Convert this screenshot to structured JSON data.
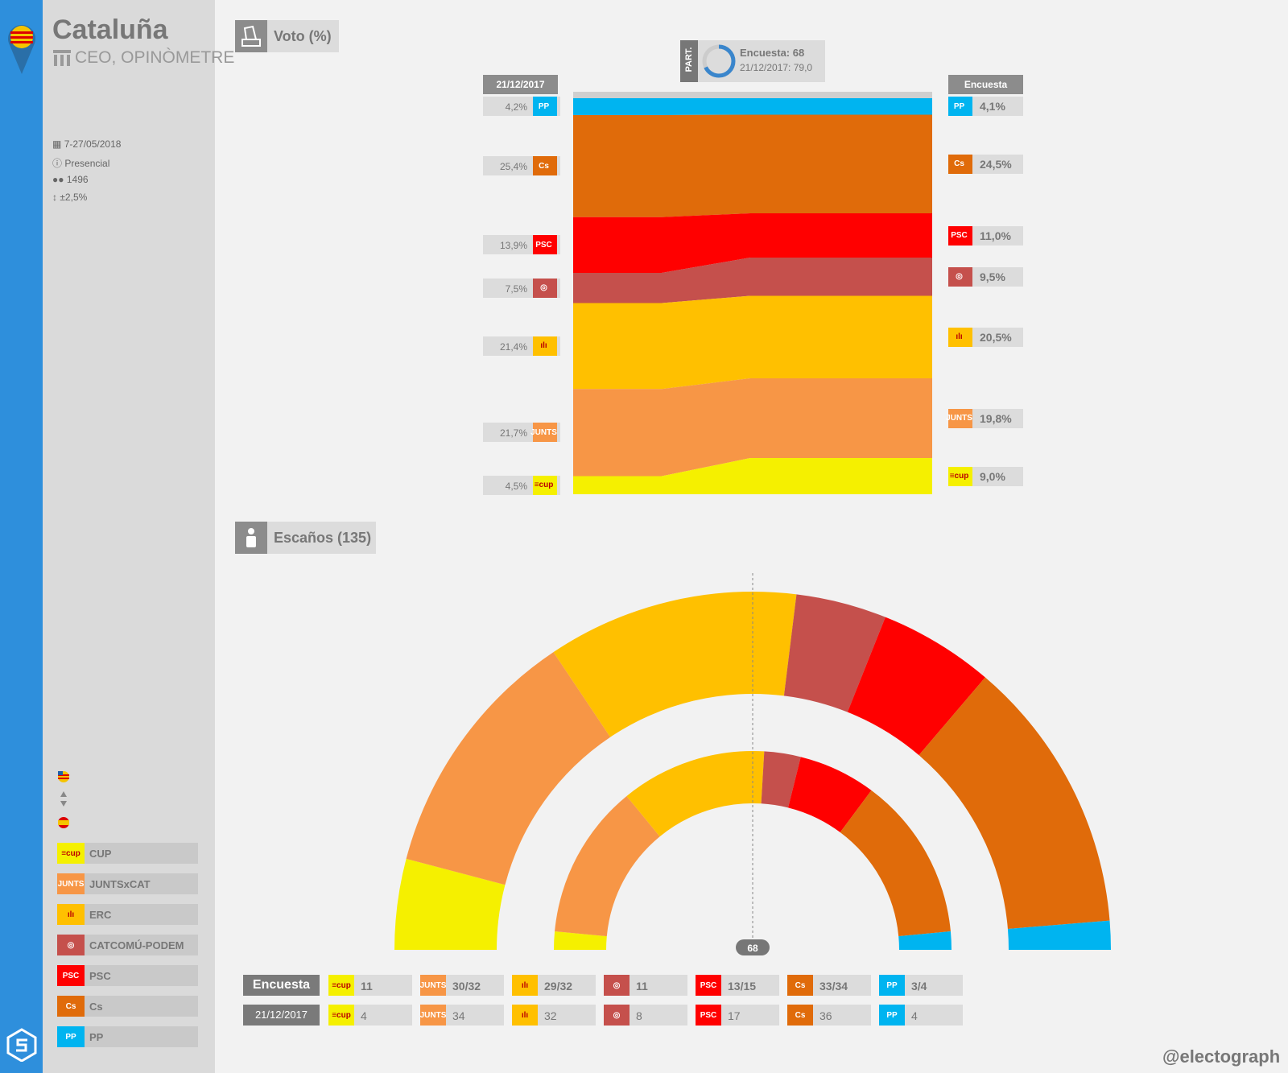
{
  "header": {
    "region": "Cataluña",
    "pollster": "CEO, OPINÒMETRE",
    "fieldwork": "7-27/05/2018",
    "method": "Presencial",
    "sample": "1496",
    "error": "±2,5%"
  },
  "sections": {
    "vote": "Voto (%)",
    "seats": "Escaños (135)"
  },
  "participation": {
    "tag": "PART.",
    "survey": "Encuesta: 68",
    "previous": "21/12/2017: 79,0",
    "fraction": 0.68
  },
  "colors": {
    "PP": "#00b4f0",
    "Cs": "#e06b0a",
    "PSC": "#ff0000",
    "CATCOMU": "#c5504c",
    "ERC": "#ffc000",
    "JUNTS": "#f79646",
    "CUP": "#f5f000"
  },
  "legend": [
    {
      "key": "CUP",
      "label": "CUP",
      "logo": "≡cup"
    },
    {
      "key": "JUNTS",
      "label": "JUNTSxCAT",
      "logo": "JUNTS"
    },
    {
      "key": "ERC",
      "label": "ERC",
      "logo": "ılı"
    },
    {
      "key": "CATCOMU",
      "label": "CATCOMÚ-PODEM",
      "logo": "◎"
    },
    {
      "key": "PSC",
      "label": "PSC",
      "logo": "PSC"
    },
    {
      "key": "Cs",
      "label": "Cs",
      "logo": "Cs"
    },
    {
      "key": "PP",
      "label": "PP",
      "logo": "PP"
    }
  ],
  "chart_data": [
    {
      "type": "area",
      "columns": [
        "21/12/2017",
        "Encuesta"
      ],
      "series": [
        {
          "key": "PP",
          "name": "PP",
          "values": [
            4.2,
            4.1
          ],
          "labels": [
            "4,2%",
            "4,1%"
          ]
        },
        {
          "key": "Cs",
          "name": "Cs",
          "values": [
            25.4,
            24.5
          ],
          "labels": [
            "25,4%",
            "24,5%"
          ]
        },
        {
          "key": "PSC",
          "name": "PSC",
          "values": [
            13.9,
            11.0
          ],
          "labels": [
            "13,9%",
            "11,0%"
          ]
        },
        {
          "key": "CATCOMU",
          "name": "CATCOMÚ-PODEM",
          "values": [
            7.5,
            9.5
          ],
          "labels": [
            "7,5%",
            "9,5%"
          ]
        },
        {
          "key": "ERC",
          "name": "ERC",
          "values": [
            21.4,
            20.5
          ],
          "labels": [
            "21,4%",
            "20,5%"
          ]
        },
        {
          "key": "JUNTS",
          "name": "JUNTSxCAT",
          "values": [
            21.7,
            19.8
          ],
          "labels": [
            "21,7%",
            "19,8%"
          ]
        },
        {
          "key": "CUP",
          "name": "CUP",
          "values": [
            4.5,
            9.0
          ],
          "labels": [
            "4,5%",
            "9,0%"
          ]
        }
      ]
    },
    {
      "type": "pie",
      "total_seats": 135,
      "majority": 68,
      "majority_label": "68",
      "rows": [
        "Encuesta",
        "21/12/2017"
      ],
      "parties": [
        {
          "key": "CUP",
          "survey": "11",
          "survey_seats": 11,
          "previous": "4",
          "previous_seats": 4
        },
        {
          "key": "JUNTS",
          "survey": "30/32",
          "survey_seats": 31,
          "previous": "34",
          "previous_seats": 34
        },
        {
          "key": "ERC",
          "survey": "29/32",
          "survey_seats": 30.5,
          "previous": "32",
          "previous_seats": 32
        },
        {
          "key": "CATCOMU",
          "survey": "11",
          "survey_seats": 11,
          "previous": "8",
          "previous_seats": 8
        },
        {
          "key": "PSC",
          "survey": "13/15",
          "survey_seats": 14,
          "previous": "17",
          "previous_seats": 17
        },
        {
          "key": "Cs",
          "survey": "33/34",
          "survey_seats": 33.5,
          "previous": "36",
          "previous_seats": 36
        },
        {
          "key": "PP",
          "survey": "3/4",
          "survey_seats": 3.5,
          "previous": "4",
          "previous_seats": 4
        }
      ]
    }
  ],
  "footer": {
    "handle": "@electograph"
  }
}
